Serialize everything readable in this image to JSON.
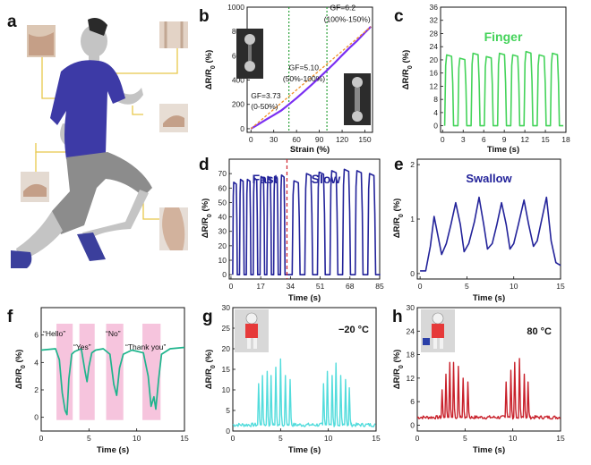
{
  "colors": {
    "green": "#44d35a",
    "navy": "#23239a",
    "cyan": "#52dcdc",
    "red": "#c8202a",
    "teal": "#1eb48c",
    "pink": "#f6c4dd",
    "purple": "#7b2ff2",
    "orange": "#f19027",
    "shirt": "#3d3aa6",
    "pants": "#8c8c8c",
    "skin": "#c4c4c4",
    "lead": "#e8c84a"
  },
  "icons": [
    "human-runner-illustration",
    "finger-photo",
    "elbow-photo",
    "wrist-photo",
    "knee-photo",
    "neck-photo",
    "sensor-photo",
    "robot-photo"
  ],
  "panel_a": {
    "letter": "a"
  },
  "chart_data": [
    {
      "panel": "b",
      "type": "line",
      "xlabel": "Strain (%)",
      "ylabel": "ΔR/R0 (%)",
      "xlim": [
        -5,
        160
      ],
      "ylim": [
        -30,
        1000
      ],
      "xticks": [
        "0",
        "30",
        "60",
        "90",
        "120",
        "150"
      ],
      "yticks": [
        "0",
        "200",
        "400",
        "600",
        "800",
        "1000"
      ],
      "series": [
        {
          "values_x": [
            0,
            10,
            20,
            30,
            40,
            50,
            60,
            70,
            80,
            90,
            100,
            110,
            120,
            130,
            140,
            150,
            158
          ],
          "values_y": [
            0,
            37,
            75,
            112,
            150,
            200,
            252,
            306,
            362,
            420,
            480,
            540,
            605,
            667,
            725,
            790,
            840
          ]
        }
      ],
      "fit_line": {
        "x": [
          0,
          158
        ],
        "y": [
          0,
          840
        ]
      },
      "vlines": [
        50,
        100
      ],
      "annotations": [
        {
          "text": "GF=3.73",
          "x": 0,
          "y": 250
        },
        {
          "text": "(0-50%)",
          "x": 0,
          "y": 160
        },
        {
          "text": "GF=5.10",
          "x": 50,
          "y": 480
        },
        {
          "text": "(50%-100%)",
          "x": 42,
          "y": 390
        },
        {
          "text": "GF=6.2",
          "x": 104,
          "y": 975
        },
        {
          "text": "(100%-150%)",
          "x": 96,
          "y": 880
        }
      ]
    },
    {
      "panel": "c",
      "type": "line",
      "title": "Finger",
      "xlabel": "Time (s)",
      "ylabel": "ΔR/R0 (%)",
      "xlim": [
        -0.3,
        18
      ],
      "ylim": [
        -2,
        36
      ],
      "xticks": [
        "0",
        "3",
        "6",
        "9",
        "12",
        "15",
        "18"
      ],
      "yticks": [
        "0",
        "4",
        "8",
        "12",
        "16",
        "20",
        "24",
        "28",
        "32",
        "36"
      ],
      "pulse": {
        "start": 0.3,
        "period": 1.93,
        "width": 1.3,
        "count": 9,
        "base": 0,
        "peaks": [
          21.5,
          20.5,
          22,
          21,
          22,
          21.5,
          22.5,
          21.5,
          22
        ]
      }
    },
    {
      "panel": "d",
      "type": "line",
      "xlabel": "Time (s)",
      "ylabel": "ΔR/R0 (%)",
      "xlim": [
        -1,
        85
      ],
      "ylim": [
        -3,
        80
      ],
      "xticks": [
        "0",
        "17",
        "34",
        "51",
        "68",
        "85"
      ],
      "yticks": [
        "0",
        "10",
        "20",
        "30",
        "40",
        "50",
        "60",
        "70"
      ],
      "labels": [
        "Fast",
        "Slow"
      ],
      "divider_x": 32,
      "pulse_fast": {
        "start": 1,
        "period": 3.9,
        "width": 2.6,
        "count": 8,
        "base": 0,
        "peaks": [
          64,
          66,
          66,
          67,
          68,
          68,
          68,
          69
        ]
      },
      "pulse_slow": {
        "start": 35,
        "period": 7.2,
        "width": 4.5,
        "count": 7,
        "base": 0,
        "peaks": [
          65,
          70,
          71,
          72,
          73,
          72,
          70
        ]
      }
    },
    {
      "panel": "e",
      "type": "line",
      "title": "Swallow",
      "xlabel": "Time (s)",
      "ylabel": "ΔR/R0 (%)",
      "xlim": [
        -0.3,
        15
      ],
      "ylim": [
        -0.1,
        2.1
      ],
      "xticks": [
        "0",
        "5",
        "10",
        "15"
      ],
      "yticks": [
        "0",
        "1",
        "2"
      ],
      "x": [
        0,
        0.6,
        1.1,
        1.5,
        1.9,
        2.3,
        2.8,
        3.3,
        3.8,
        4.3,
        4.7,
        5.2,
        5.8,
        6.3,
        6.8,
        7.2,
        7.7,
        8.2,
        8.7,
        9.2,
        9.6,
        10.0,
        10.5,
        11.1,
        11.6,
        12.1,
        12.5,
        13.0,
        13.5,
        14.0,
        14.5,
        15
      ],
      "y": [
        0.05,
        0.05,
        0.5,
        1.05,
        0.7,
        0.35,
        0.55,
        0.9,
        1.3,
        0.9,
        0.4,
        0.55,
        0.95,
        1.4,
        0.9,
        0.45,
        0.55,
        0.9,
        1.3,
        0.9,
        0.45,
        0.55,
        0.9,
        1.35,
        0.9,
        0.5,
        0.6,
        1.0,
        1.4,
        0.6,
        0.2,
        0.15
      ]
    },
    {
      "panel": "f",
      "type": "line",
      "xlabel": "Time (s)",
      "ylabel": "ΔR/R0 (%)",
      "xlim": [
        0,
        15
      ],
      "ylim": [
        -1,
        8
      ],
      "xticks": [
        "0",
        "5",
        "10",
        "15"
      ],
      "yticks": [
        "0",
        "2",
        "4",
        "6"
      ],
      "bands": [
        [
          1.6,
          3.3
        ],
        [
          4.0,
          5.6
        ],
        [
          6.8,
          8.6
        ],
        [
          10.6,
          12.5
        ]
      ],
      "annotations": [
        "“Hello”",
        "“Yes”",
        "“No”",
        "“Thank you”"
      ],
      "x": [
        0,
        1.5,
        1.9,
        2.2,
        2.5,
        2.7,
        2.9,
        3.2,
        3.5,
        4.2,
        4.6,
        4.8,
        5.0,
        5.3,
        5.7,
        6.5,
        7.2,
        7.6,
        7.9,
        8.2,
        8.6,
        9.5,
        10.7,
        11.2,
        11.5,
        11.8,
        12.0,
        12.3,
        12.6,
        13.5,
        15
      ],
      "y": [
        4.9,
        5.0,
        4.2,
        1.8,
        0.5,
        0.2,
        2.8,
        4.6,
        4.8,
        5.0,
        3.3,
        2.6,
        3.7,
        4.7,
        4.9,
        5.0,
        4.6,
        2.4,
        1.6,
        3.6,
        4.6,
        4.9,
        4.7,
        3.0,
        0.8,
        1.5,
        0.6,
        2.8,
        4.6,
        5.0,
        5.1
      ]
    },
    {
      "panel": "g",
      "type": "line",
      "label": "−20 °C",
      "xlabel": "Time (s)",
      "ylabel": "ΔR/R0 (%)",
      "xlim": [
        0,
        15
      ],
      "ylim": [
        0,
        30
      ],
      "xticks": [
        "0",
        "5",
        "10",
        "15"
      ],
      "yticks": [
        "0",
        "5",
        "10",
        "15",
        "20",
        "25",
        "30"
      ],
      "base": 1.5,
      "spikes": [
        {
          "x": 2.7,
          "h": 10
        },
        {
          "x": 3.1,
          "h": 12
        },
        {
          "x": 3.6,
          "h": 13
        },
        {
          "x": 4.0,
          "h": 12
        },
        {
          "x": 4.5,
          "h": 14
        },
        {
          "x": 5.0,
          "h": 16
        },
        {
          "x": 5.5,
          "h": 12
        },
        {
          "x": 6.0,
          "h": 11
        },
        {
          "x": 9.5,
          "h": 10
        },
        {
          "x": 9.9,
          "h": 13
        },
        {
          "x": 10.4,
          "h": 12
        },
        {
          "x": 10.8,
          "h": 15
        },
        {
          "x": 11.3,
          "h": 12
        },
        {
          "x": 11.8,
          "h": 11
        },
        {
          "x": 12.2,
          "h": 9
        }
      ]
    },
    {
      "panel": "h",
      "type": "line",
      "label": "80 °C",
      "xlabel": "Time (s)",
      "ylabel": "ΔR/R0 (%)",
      "xlim": [
        0,
        15
      ],
      "ylim": [
        -1.5,
        30
      ],
      "xticks": [
        "0",
        "5",
        "10",
        "15"
      ],
      "yticks": [
        "0",
        "6",
        "12",
        "18",
        "24",
        "30"
      ],
      "base": 2,
      "spikes": [
        {
          "x": 2.6,
          "h": 7
        },
        {
          "x": 3.0,
          "h": 11
        },
        {
          "x": 3.4,
          "h": 14
        },
        {
          "x": 3.8,
          "h": 14
        },
        {
          "x": 4.3,
          "h": 13
        },
        {
          "x": 4.8,
          "h": 10
        },
        {
          "x": 5.3,
          "h": 9
        },
        {
          "x": 9.3,
          "h": 9
        },
        {
          "x": 9.8,
          "h": 12
        },
        {
          "x": 10.2,
          "h": 14
        },
        {
          "x": 10.7,
          "h": 15
        },
        {
          "x": 11.2,
          "h": 11
        },
        {
          "x": 11.6,
          "h": 9
        }
      ]
    }
  ]
}
